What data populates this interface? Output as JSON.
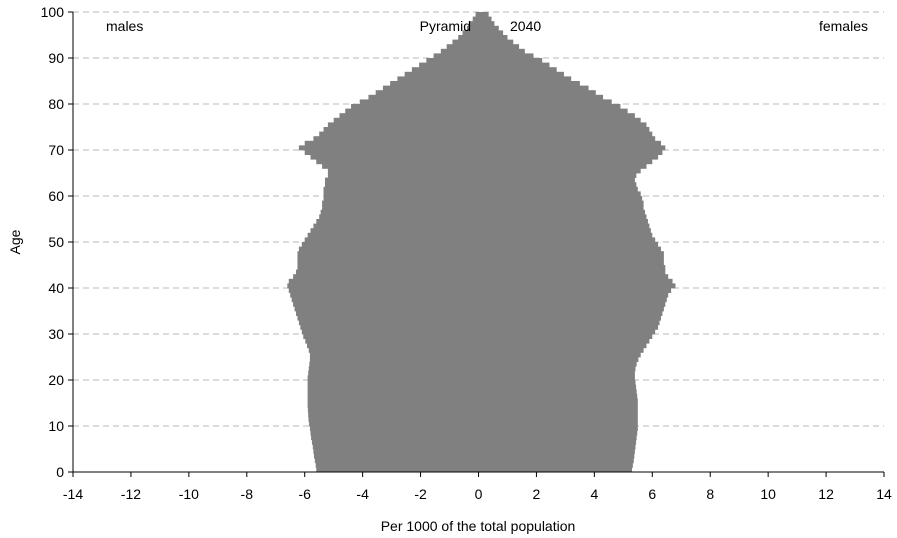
{
  "chart_data": {
    "type": "bar",
    "orientation": "horizontal-pyramid",
    "title": "Pyramid",
    "year": "2040",
    "left_label": "males",
    "right_label": "females",
    "xlabel": "Per 1000 of the total population",
    "ylabel": "Age",
    "xlim": [
      -14,
      14
    ],
    "ylim": [
      0,
      100
    ],
    "x_ticks": [
      "-14",
      "-12",
      "-10",
      "-8",
      "-6",
      "-4",
      "-2",
      "0",
      "2",
      "4",
      "6",
      "8",
      "10",
      "12",
      "14"
    ],
    "y_ticks": [
      "0",
      "10",
      "20",
      "30",
      "40",
      "50",
      "60",
      "70",
      "80",
      "90",
      "100"
    ],
    "grid": "horizontal dashed",
    "bar_color": "#808080",
    "ages": [
      0,
      1,
      2,
      3,
      4,
      5,
      6,
      7,
      8,
      9,
      10,
      11,
      12,
      13,
      14,
      15,
      16,
      17,
      18,
      19,
      20,
      21,
      22,
      23,
      24,
      25,
      26,
      27,
      28,
      29,
      30,
      31,
      32,
      33,
      34,
      35,
      36,
      37,
      38,
      39,
      40,
      41,
      42,
      43,
      44,
      45,
      46,
      47,
      48,
      49,
      50,
      51,
      52,
      53,
      54,
      55,
      56,
      57,
      58,
      59,
      60,
      61,
      62,
      63,
      64,
      65,
      66,
      67,
      68,
      69,
      70,
      71,
      72,
      73,
      74,
      75,
      76,
      77,
      78,
      79,
      80,
      81,
      82,
      83,
      84,
      85,
      86,
      87,
      88,
      89,
      90,
      91,
      92,
      93,
      94,
      95,
      96,
      97,
      98,
      99
    ],
    "series": [
      {
        "name": "males",
        "values": [
          -5.6,
          -5.62,
          -5.65,
          -5.68,
          -5.7,
          -5.72,
          -5.75,
          -5.78,
          -5.8,
          -5.82,
          -5.85,
          -5.87,
          -5.88,
          -5.89,
          -5.9,
          -5.9,
          -5.9,
          -5.9,
          -5.9,
          -5.9,
          -5.9,
          -5.88,
          -5.86,
          -5.84,
          -5.82,
          -5.82,
          -5.86,
          -5.92,
          -5.98,
          -6.05,
          -6.1,
          -6.15,
          -6.2,
          -6.25,
          -6.3,
          -6.35,
          -6.4,
          -6.45,
          -6.5,
          -6.55,
          -6.6,
          -6.55,
          -6.4,
          -6.3,
          -6.25,
          -6.25,
          -6.25,
          -6.25,
          -6.2,
          -6.1,
          -6.0,
          -5.9,
          -5.8,
          -5.7,
          -5.6,
          -5.5,
          -5.45,
          -5.4,
          -5.4,
          -5.35,
          -5.35,
          -5.35,
          -5.3,
          -5.3,
          -5.2,
          -5.2,
          -5.4,
          -5.6,
          -5.8,
          -6.0,
          -6.2,
          -6.0,
          -5.7,
          -5.5,
          -5.35,
          -5.2,
          -5.0,
          -4.8,
          -4.6,
          -4.4,
          -4.1,
          -3.8,
          -3.55,
          -3.3,
          -3.05,
          -2.8,
          -2.55,
          -2.3,
          -2.05,
          -1.8,
          -1.55,
          -1.3,
          -1.1,
          -0.9,
          -0.7,
          -0.55,
          -0.4,
          -0.3,
          -0.2,
          -0.1
        ]
      },
      {
        "name": "females",
        "values": [
          5.3,
          5.33,
          5.36,
          5.38,
          5.4,
          5.42,
          5.44,
          5.46,
          5.48,
          5.5,
          5.5,
          5.5,
          5.5,
          5.5,
          5.5,
          5.5,
          5.48,
          5.46,
          5.44,
          5.42,
          5.4,
          5.4,
          5.42,
          5.46,
          5.52,
          5.6,
          5.7,
          5.8,
          5.9,
          6.0,
          6.1,
          6.2,
          6.25,
          6.3,
          6.35,
          6.4,
          6.45,
          6.5,
          6.55,
          6.65,
          6.8,
          6.7,
          6.55,
          6.45,
          6.45,
          6.4,
          6.4,
          6.4,
          6.3,
          6.2,
          6.1,
          6.0,
          5.95,
          5.9,
          5.85,
          5.8,
          5.75,
          5.7,
          5.7,
          5.65,
          5.6,
          5.5,
          5.45,
          5.4,
          5.45,
          5.6,
          5.8,
          6.0,
          6.2,
          6.35,
          6.45,
          6.3,
          6.1,
          6.0,
          5.9,
          5.8,
          5.6,
          5.4,
          5.15,
          4.9,
          4.6,
          4.3,
          4.05,
          3.8,
          3.5,
          3.2,
          2.95,
          2.7,
          2.45,
          2.2,
          1.9,
          1.6,
          1.4,
          1.2,
          1.0,
          0.85,
          0.7,
          0.55,
          0.45,
          0.35
        ]
      }
    ]
  }
}
